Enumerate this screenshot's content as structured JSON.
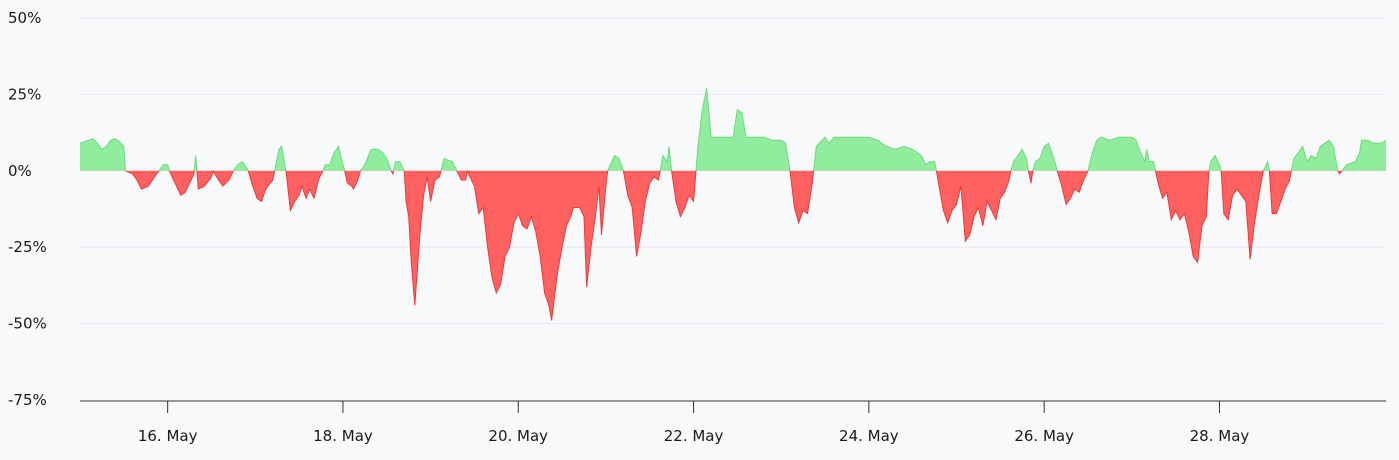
{
  "chart_data": {
    "type": "area",
    "title": "",
    "xlabel": "",
    "ylabel": "",
    "x_unit": "day of May",
    "xlim": [
      15,
      29.9
    ],
    "ylim": [
      -75,
      50
    ],
    "y_ticks": [
      50,
      25,
      0,
      -25,
      -50,
      -75
    ],
    "y_tick_labels": [
      "50%",
      "25%",
      "0%",
      "-25%",
      "-50%",
      "-75%"
    ],
    "x_ticks": [
      16,
      18,
      20,
      22,
      24,
      26,
      28
    ],
    "x_tick_labels": [
      "16. May",
      "18. May",
      "20. May",
      "22. May",
      "24. May",
      "26. May",
      "28. May"
    ],
    "grid": true,
    "legend": "none",
    "positive_color": "#90ed9d",
    "positive_line_color": "#6fd97f",
    "negative_color": "#ff6161",
    "negative_line_color": "#e83b3b",
    "series": [
      {
        "values": [
          [
            15.0,
            9
          ],
          [
            15.1,
            10
          ],
          [
            15.15,
            10.5
          ],
          [
            15.2,
            9
          ],
          [
            15.25,
            7
          ],
          [
            15.3,
            8
          ],
          [
            15.35,
            10
          ],
          [
            15.4,
            10.5
          ],
          [
            15.45,
            9.5
          ],
          [
            15.5,
            8
          ],
          [
            15.52,
            0
          ],
          [
            15.6,
            -1
          ],
          [
            15.65,
            -3
          ],
          [
            15.7,
            -6
          ],
          [
            15.78,
            -5
          ],
          [
            15.85,
            -2
          ],
          [
            15.9,
            0
          ],
          [
            15.95,
            2
          ],
          [
            16.0,
            2
          ],
          [
            16.02,
            0
          ],
          [
            16.1,
            -5
          ],
          [
            16.15,
            -8
          ],
          [
            16.2,
            -7
          ],
          [
            16.25,
            -4
          ],
          [
            16.3,
            -1
          ],
          [
            16.32,
            5
          ],
          [
            16.35,
            -6
          ],
          [
            16.42,
            -5
          ],
          [
            16.5,
            -2
          ],
          [
            16.52,
            0
          ],
          [
            16.58,
            -3
          ],
          [
            16.63,
            -5
          ],
          [
            16.7,
            -3
          ],
          [
            16.75,
            0
          ],
          [
            16.8,
            2
          ],
          [
            16.85,
            3
          ],
          [
            16.9,
            1
          ],
          [
            16.92,
            0
          ],
          [
            16.97,
            -5
          ],
          [
            17.02,
            -9
          ],
          [
            17.07,
            -10
          ],
          [
            17.12,
            -6
          ],
          [
            17.17,
            -4
          ],
          [
            17.2,
            -3
          ],
          [
            17.22,
            0
          ],
          [
            17.27,
            7
          ],
          [
            17.3,
            8
          ],
          [
            17.35,
            0
          ],
          [
            17.4,
            -13
          ],
          [
            17.45,
            -10
          ],
          [
            17.5,
            -8
          ],
          [
            17.53,
            -5
          ],
          [
            17.58,
            -9
          ],
          [
            17.62,
            -6
          ],
          [
            17.67,
            -9
          ],
          [
            17.72,
            -3
          ],
          [
            17.77,
            0
          ],
          [
            17.8,
            2
          ],
          [
            17.85,
            2
          ],
          [
            17.9,
            6
          ],
          [
            17.95,
            8
          ],
          [
            18.0,
            2
          ],
          [
            18.02,
            0
          ],
          [
            18.05,
            -4
          ],
          [
            18.1,
            -5
          ],
          [
            18.12,
            -6
          ],
          [
            18.17,
            -3
          ],
          [
            18.2,
            0
          ],
          [
            18.25,
            2
          ],
          [
            18.32,
            7
          ],
          [
            18.4,
            7
          ],
          [
            18.45,
            6
          ],
          [
            18.5,
            4
          ],
          [
            18.55,
            0
          ],
          [
            18.57,
            -1
          ],
          [
            18.6,
            3
          ],
          [
            18.65,
            3
          ],
          [
            18.7,
            0
          ],
          [
            18.72,
            -10
          ],
          [
            18.75,
            -15
          ],
          [
            18.78,
            -30
          ],
          [
            18.82,
            -44
          ],
          [
            18.88,
            -20
          ],
          [
            18.92,
            -8
          ],
          [
            18.96,
            -2
          ],
          [
            19.0,
            -10
          ],
          [
            19.05,
            -3
          ],
          [
            19.1,
            -2
          ],
          [
            19.12,
            0
          ],
          [
            19.15,
            4
          ],
          [
            19.25,
            3
          ],
          [
            19.3,
            0
          ],
          [
            19.35,
            -3
          ],
          [
            19.4,
            -3
          ],
          [
            19.42,
            0
          ],
          [
            19.45,
            -2
          ],
          [
            19.5,
            -5
          ],
          [
            19.55,
            -14
          ],
          [
            19.6,
            -12
          ],
          [
            19.65,
            -25
          ],
          [
            19.7,
            -35
          ],
          [
            19.75,
            -40
          ],
          [
            19.8,
            -37
          ],
          [
            19.85,
            -28
          ],
          [
            19.9,
            -25
          ],
          [
            19.95,
            -17
          ],
          [
            20.0,
            -14
          ],
          [
            20.05,
            -18
          ],
          [
            20.1,
            -19
          ],
          [
            20.15,
            -15
          ],
          [
            20.2,
            -20
          ],
          [
            20.25,
            -28
          ],
          [
            20.3,
            -40
          ],
          [
            20.35,
            -44
          ],
          [
            20.38,
            -49
          ],
          [
            20.45,
            -33
          ],
          [
            20.5,
            -25
          ],
          [
            20.55,
            -18
          ],
          [
            20.6,
            -15
          ],
          [
            20.63,
            -12
          ],
          [
            20.7,
            -12
          ],
          [
            20.75,
            -15
          ],
          [
            20.78,
            -38
          ],
          [
            20.83,
            -25
          ],
          [
            20.88,
            -15
          ],
          [
            20.92,
            -5
          ],
          [
            20.95,
            -21
          ],
          [
            21.0,
            -5
          ],
          [
            21.02,
            0
          ],
          [
            21.05,
            2
          ],
          [
            21.1,
            5
          ],
          [
            21.15,
            4
          ],
          [
            21.2,
            0
          ],
          [
            21.25,
            -8
          ],
          [
            21.3,
            -12
          ],
          [
            21.35,
            -28
          ],
          [
            21.4,
            -20
          ],
          [
            21.45,
            -10
          ],
          [
            21.5,
            -4
          ],
          [
            21.55,
            -2
          ],
          [
            21.6,
            -3
          ],
          [
            21.62,
            0
          ],
          [
            21.65,
            5
          ],
          [
            21.7,
            3
          ],
          [
            21.72,
            8
          ],
          [
            21.75,
            0
          ],
          [
            21.8,
            -10
          ],
          [
            21.85,
            -15
          ],
          [
            21.9,
            -12
          ],
          [
            21.95,
            -8
          ],
          [
            22.0,
            -10
          ],
          [
            22.05,
            8
          ],
          [
            22.1,
            20
          ],
          [
            22.15,
            27
          ],
          [
            22.2,
            11
          ],
          [
            22.3,
            11
          ],
          [
            22.4,
            11
          ],
          [
            22.45,
            11
          ],
          [
            22.5,
            20
          ],
          [
            22.55,
            19
          ],
          [
            22.6,
            11
          ],
          [
            22.8,
            11
          ],
          [
            22.9,
            10
          ],
          [
            23.0,
            10
          ],
          [
            23.05,
            9
          ],
          [
            23.1,
            0
          ],
          [
            23.15,
            -12
          ],
          [
            23.2,
            -17
          ],
          [
            23.25,
            -13
          ],
          [
            23.3,
            -14
          ],
          [
            23.35,
            -5
          ],
          [
            23.37,
            0
          ],
          [
            23.4,
            8
          ],
          [
            23.5,
            11
          ],
          [
            23.55,
            9
          ],
          [
            23.6,
            11
          ],
          [
            23.75,
            11
          ],
          [
            24.0,
            11
          ],
          [
            24.1,
            10
          ],
          [
            24.2,
            8
          ],
          [
            24.3,
            7
          ],
          [
            24.4,
            8
          ],
          [
            24.5,
            7
          ],
          [
            24.6,
            5
          ],
          [
            24.65,
            2
          ],
          [
            24.7,
            3
          ],
          [
            24.75,
            3
          ],
          [
            24.77,
            0
          ],
          [
            24.8,
            -5
          ],
          [
            24.85,
            -13
          ],
          [
            24.9,
            -17
          ],
          [
            24.95,
            -13
          ],
          [
            25.0,
            -11
          ],
          [
            25.05,
            -5
          ],
          [
            25.1,
            -23
          ],
          [
            25.15,
            -21
          ],
          [
            25.2,
            -15
          ],
          [
            25.25,
            -12
          ],
          [
            25.3,
            -18
          ],
          [
            25.35,
            -10
          ],
          [
            25.4,
            -13
          ],
          [
            25.45,
            -16
          ],
          [
            25.5,
            -9
          ],
          [
            25.55,
            -7
          ],
          [
            25.6,
            -3
          ],
          [
            25.62,
            0
          ],
          [
            25.65,
            3
          ],
          [
            25.7,
            5
          ],
          [
            25.75,
            7
          ],
          [
            25.8,
            4
          ],
          [
            25.82,
            0
          ],
          [
            25.85,
            -4
          ],
          [
            25.87,
            0
          ],
          [
            25.9,
            3
          ],
          [
            25.95,
            4
          ],
          [
            26.0,
            8
          ],
          [
            26.05,
            9
          ],
          [
            26.1,
            5
          ],
          [
            26.15,
            0
          ],
          [
            26.2,
            -5
          ],
          [
            26.25,
            -11
          ],
          [
            26.3,
            -9
          ],
          [
            26.35,
            -6
          ],
          [
            26.4,
            -7
          ],
          [
            26.45,
            -3
          ],
          [
            26.5,
            0
          ],
          [
            26.55,
            6
          ],
          [
            26.6,
            10
          ],
          [
            26.65,
            11
          ],
          [
            26.75,
            10
          ],
          [
            26.85,
            11
          ],
          [
            27.0,
            11
          ],
          [
            27.05,
            10
          ],
          [
            27.1,
            6
          ],
          [
            27.15,
            3
          ],
          [
            27.17,
            7
          ],
          [
            27.2,
            3
          ],
          [
            27.25,
            3
          ],
          [
            27.27,
            0
          ],
          [
            27.3,
            -4
          ],
          [
            27.35,
            -9
          ],
          [
            27.4,
            -7
          ],
          [
            27.45,
            -16
          ],
          [
            27.5,
            -13
          ],
          [
            27.55,
            -16
          ],
          [
            27.6,
            -14
          ],
          [
            27.65,
            -20
          ],
          [
            27.7,
            -28
          ],
          [
            27.75,
            -30
          ],
          [
            27.8,
            -18
          ],
          [
            27.85,
            -15
          ],
          [
            27.88,
            0
          ],
          [
            27.9,
            3
          ],
          [
            27.95,
            5
          ],
          [
            28.0,
            2
          ],
          [
            28.02,
            0
          ],
          [
            28.05,
            -14
          ],
          [
            28.1,
            -16
          ],
          [
            28.15,
            -8
          ],
          [
            28.2,
            -6
          ],
          [
            28.25,
            -8
          ],
          [
            28.3,
            -10
          ],
          [
            28.35,
            -29
          ],
          [
            28.4,
            -17
          ],
          [
            28.45,
            -8
          ],
          [
            28.5,
            0
          ],
          [
            28.55,
            3
          ],
          [
            28.57,
            0
          ],
          [
            28.6,
            -14
          ],
          [
            28.65,
            -14
          ],
          [
            28.7,
            -10
          ],
          [
            28.75,
            -6
          ],
          [
            28.8,
            -3
          ],
          [
            28.82,
            0
          ],
          [
            28.85,
            4
          ],
          [
            28.9,
            6
          ],
          [
            28.95,
            8
          ],
          [
            29.0,
            3
          ],
          [
            29.05,
            5
          ],
          [
            29.1,
            4
          ],
          [
            29.15,
            8
          ],
          [
            29.2,
            9
          ],
          [
            29.25,
            10
          ],
          [
            29.3,
            8
          ],
          [
            29.35,
            0
          ],
          [
            29.37,
            -1
          ],
          [
            29.4,
            0
          ],
          [
            29.45,
            2
          ],
          [
            29.55,
            3
          ],
          [
            29.6,
            6
          ],
          [
            29.62,
            10
          ],
          [
            29.7,
            10
          ],
          [
            29.75,
            9
          ],
          [
            29.85,
            9
          ],
          [
            29.9,
            10
          ],
          [
            30.0,
            10
          ],
          [
            30.1,
            10
          ],
          [
            30.15,
            9
          ],
          [
            30.2,
            10
          ],
          [
            30.25,
            5
          ],
          [
            30.3,
            2
          ],
          [
            30.35,
            1
          ]
        ]
      }
    ]
  }
}
